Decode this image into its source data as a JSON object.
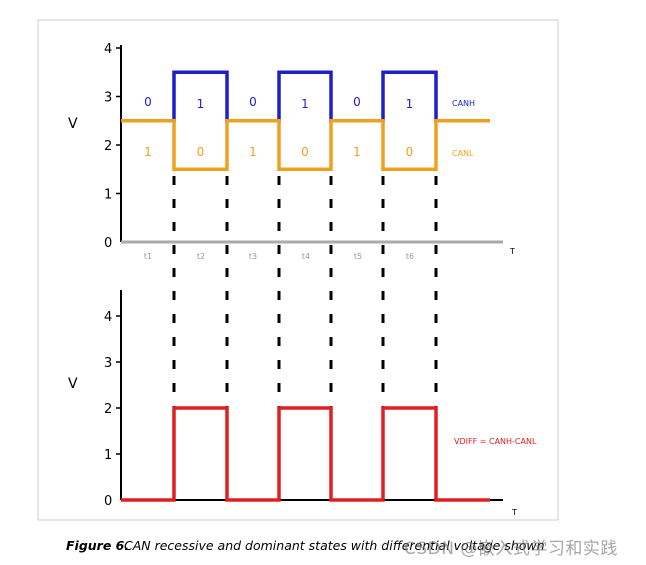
{
  "top_chart": {
    "y_label": "V",
    "x_label": "T",
    "y_ticks": [
      "0",
      "1",
      "2",
      "3",
      "4"
    ],
    "x_ticks": [
      "t1",
      "t2",
      "t3",
      "t4",
      "t5",
      "t6"
    ],
    "canh_label": "CANH",
    "canl_label": "CANL",
    "canh_bits": [
      "0",
      "1",
      "0",
      "1",
      "0",
      "1"
    ],
    "canl_bits": [
      "1",
      "0",
      "1",
      "0",
      "1",
      "0"
    ],
    "canh_color": "#1f1fc8",
    "canl_color": "#f0a020",
    "canh_levels": [
      2.5,
      3.5,
      2.5,
      3.5,
      2.5,
      3.5,
      2.5
    ],
    "canl_levels": [
      2.5,
      1.5,
      2.5,
      1.5,
      2.5,
      1.5,
      2.5
    ]
  },
  "bottom_chart": {
    "y_label": "V",
    "x_label": "T",
    "y_ticks": [
      "0",
      "1",
      "2",
      "3",
      "4"
    ],
    "vdiff_label": "VDIFF = CANH-CANL",
    "vdiff_color": "#e02020",
    "vdiff_levels": [
      0,
      2,
      0,
      2,
      0,
      2,
      0
    ]
  },
  "caption": {
    "label": "Figure 6.",
    "text": "CAN recessive and dominant states with differential voltage shown"
  },
  "watermark": "CSDN @嵌入式学习和实践"
}
